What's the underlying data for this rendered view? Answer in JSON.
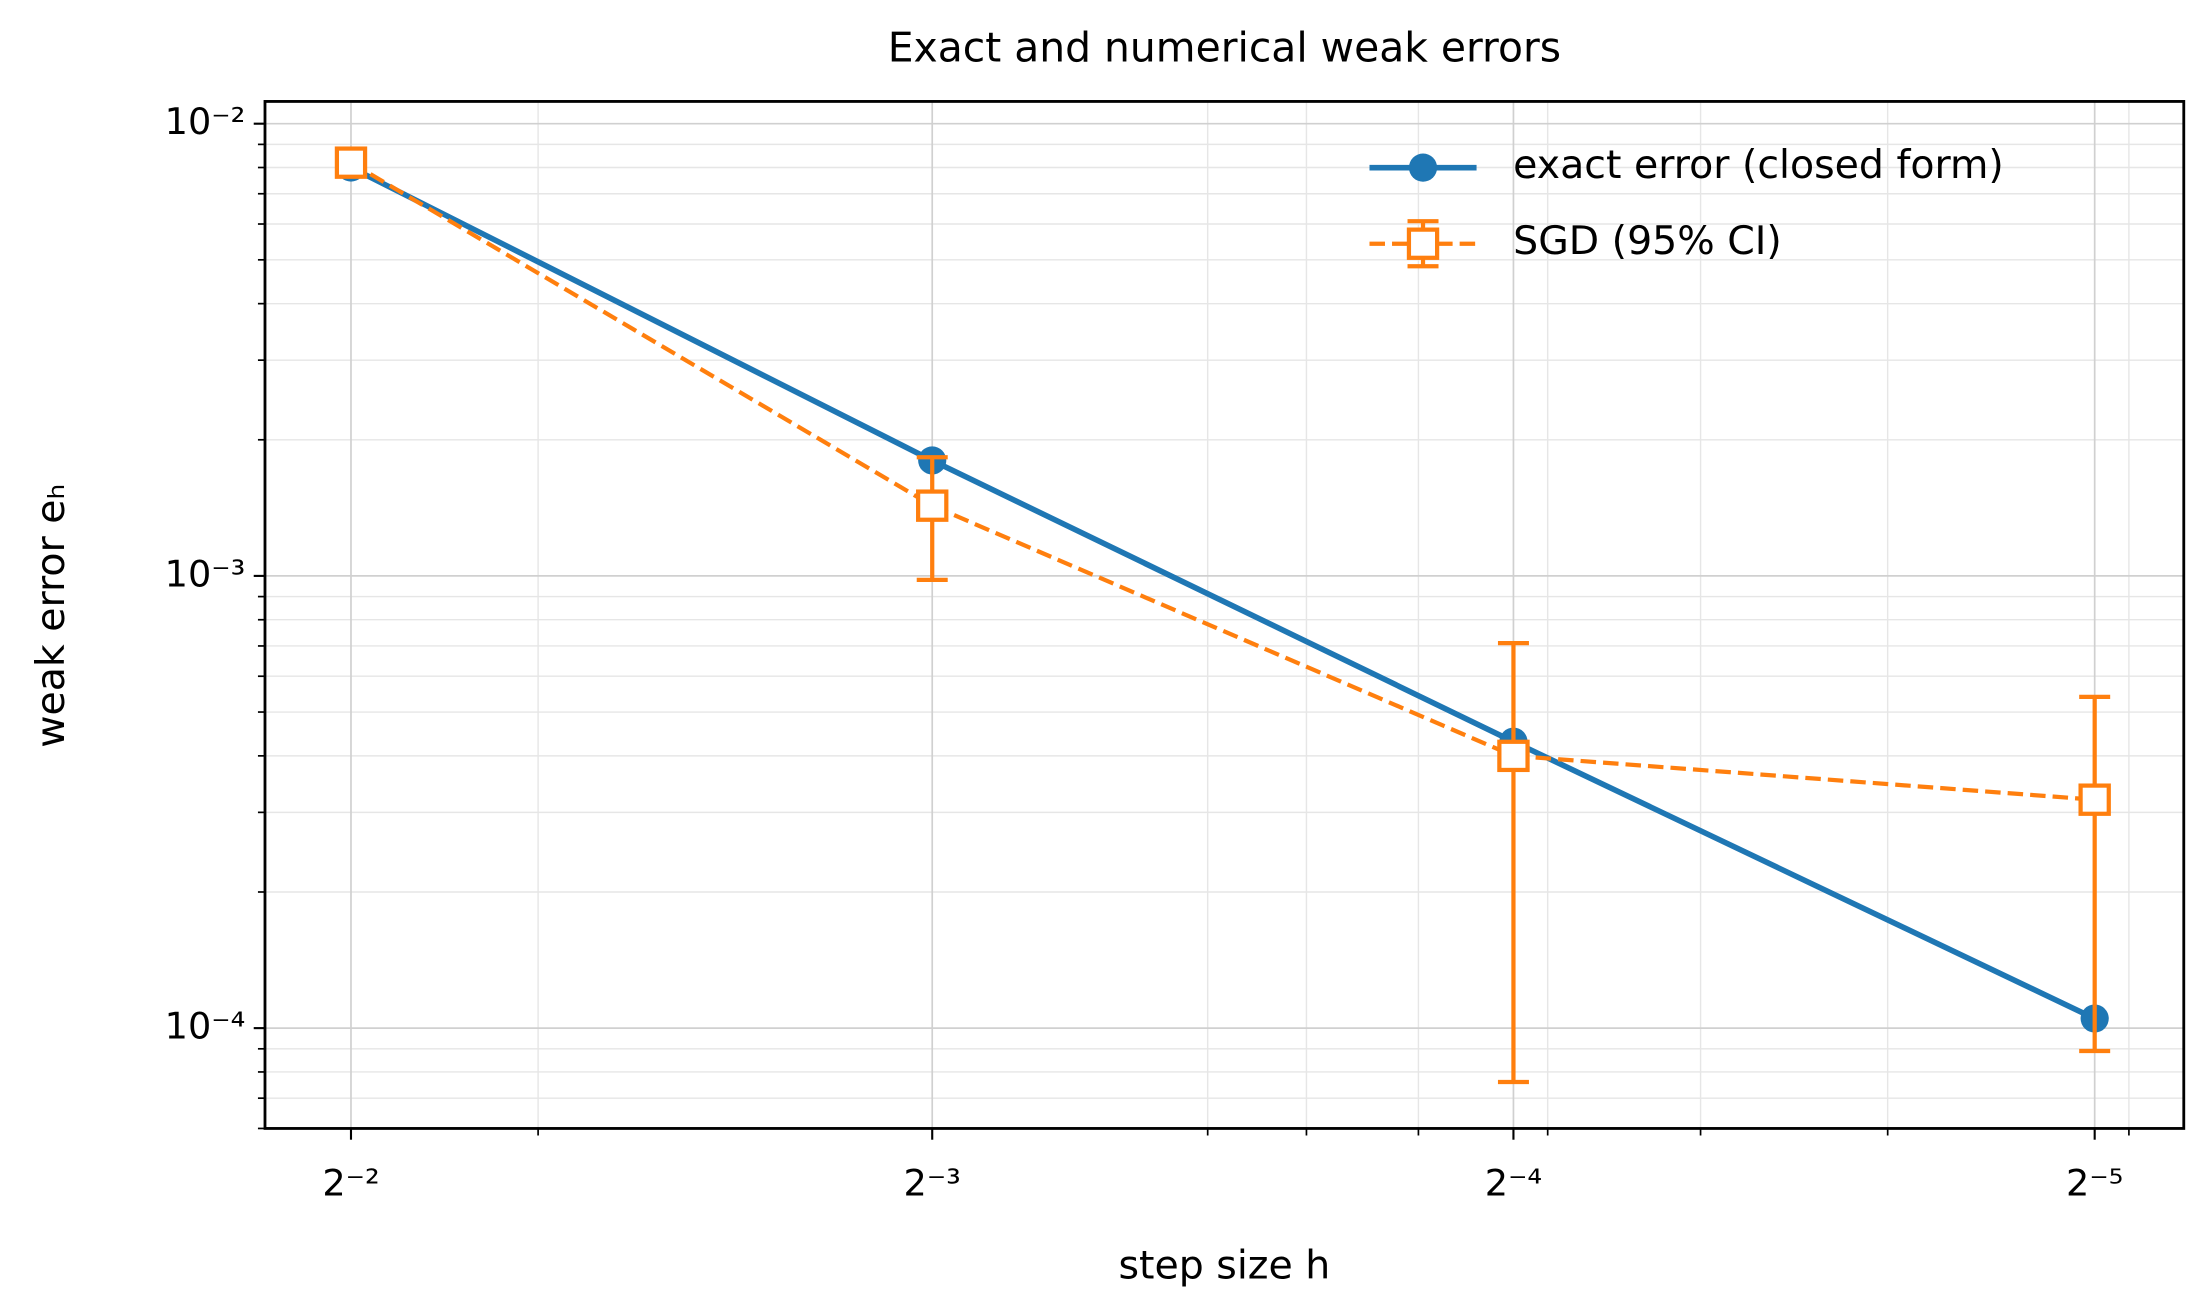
{
  "chart_data": {
    "type": "line",
    "title": "Exact and numerical weak errors",
    "xlabel": "step size h",
    "ylabel": "weak error eₕ",
    "x": [
      0.25,
      0.125,
      0.0625,
      0.03125
    ],
    "series": [
      {
        "name": "exact error (closed form)",
        "color": "#1f77b4",
        "values": [
          0.008,
          0.0018,
          0.00043,
          0.000105
        ]
      },
      {
        "name": "SGD (95% CI)",
        "color": "#ff7f0e",
        "values": [
          0.0082,
          0.00143,
          0.0004,
          0.00032
        ],
        "ci_low": [
          0.0079,
          0.00098,
          7.6e-05,
          8.9e-05
        ],
        "ci_high": [
          0.0085,
          0.00183,
          0.00071,
          0.00054
        ]
      }
    ],
    "xscale": "log",
    "yscale": "log",
    "xlim": [
      0.277,
      0.0281
    ],
    "ylim": [
      6e-05,
      0.0112
    ],
    "xticks": [
      {
        "value": 0.25,
        "label": "2⁻²"
      },
      {
        "value": 0.125,
        "label": "2⁻³"
      },
      {
        "value": 0.0625,
        "label": "2⁻⁴"
      },
      {
        "value": 0.03125,
        "label": "2⁻⁵"
      }
    ],
    "yticks": [
      {
        "value": 0.01,
        "label": "10⁻²"
      },
      {
        "value": 0.001,
        "label": "10⁻³"
      },
      {
        "value": 0.0001,
        "label": "10⁻⁴"
      }
    ],
    "xminor": [
      0.2,
      0.09,
      0.08,
      0.07,
      0.06,
      0.05,
      0.04,
      0.03
    ],
    "yminor": [
      0.009,
      0.008,
      0.007,
      0.006,
      0.005,
      0.004,
      0.003,
      0.002,
      0.0009,
      0.0008,
      0.0007,
      0.0006,
      0.0005,
      0.0004,
      0.0003,
      0.0002,
      9e-05,
      8e-05,
      7e-05,
      6e-05
    ],
    "grid": true,
    "legend": "upper right"
  }
}
